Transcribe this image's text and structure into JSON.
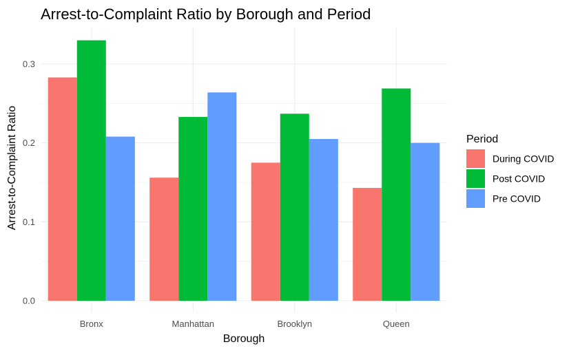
{
  "chart_data": {
    "type": "bar",
    "title": "Arrest-to-Complaint Ratio by Borough and Period",
    "xlabel": "Borough",
    "ylabel": "Arrest-to-Complaint Ratio",
    "categories": [
      "Bronx",
      "Manhattan",
      "Brooklyn",
      "Queen"
    ],
    "series": [
      {
        "name": "During COVID",
        "color": "#F8766D",
        "values": [
          0.283,
          0.156,
          0.175,
          0.143
        ]
      },
      {
        "name": "Post COVID",
        "color": "#00BA38",
        "values": [
          0.33,
          0.233,
          0.237,
          0.269
        ]
      },
      {
        "name": "Pre COVID",
        "color": "#619CFF",
        "values": [
          0.208,
          0.264,
          0.205,
          0.2
        ]
      }
    ],
    "ylim": [
      0,
      0.345
    ],
    "yticks": [
      0.0,
      0.1,
      0.2,
      0.3
    ],
    "ytick_labels": [
      "0.0",
      "0.1",
      "0.2",
      "0.3"
    ],
    "legend_title": "Period",
    "legend_position": "right",
    "grid": true
  }
}
